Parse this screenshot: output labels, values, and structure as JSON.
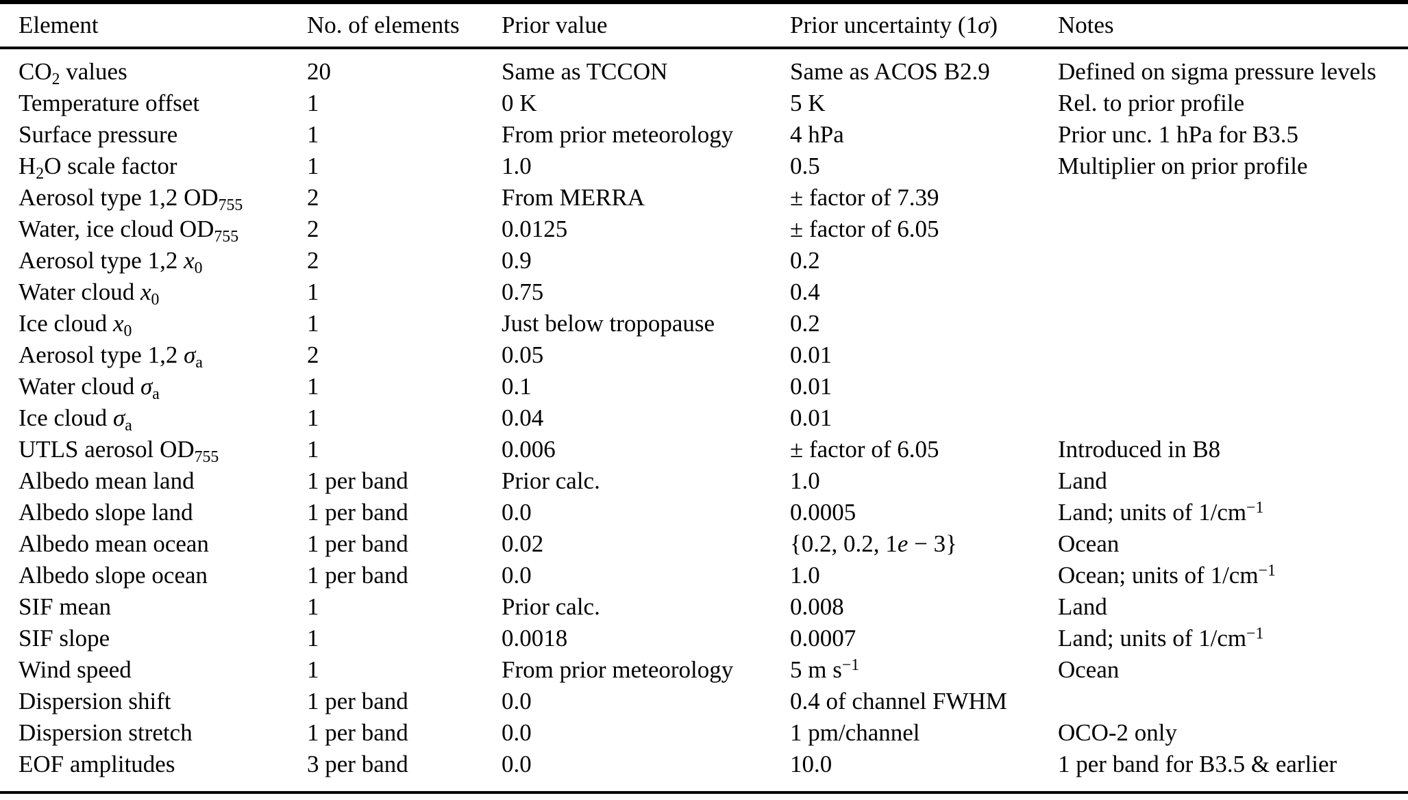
{
  "colors": {
    "text": "#000000",
    "background": "#ffffff",
    "rule": "#000000"
  },
  "table": {
    "column_keys": [
      "element",
      "num-elements",
      "prior-value",
      "prior-uncertainty",
      "notes"
    ],
    "columns": [
      {
        "label": "Element"
      },
      {
        "label": "No. of elements"
      },
      {
        "label": "Prior value"
      },
      {
        "label": "Prior uncertainty (1*σ*)"
      },
      {
        "label": "Notes"
      }
    ],
    "rows": [
      {
        "cells": [
          "CO_{2} values",
          "20",
          "Same as TCCON",
          "Same as ACOS B2.9",
          "Defined on sigma pressure levels"
        ]
      },
      {
        "cells": [
          "Temperature offset",
          "1",
          "0 K",
          "5 K",
          "Rel. to prior profile"
        ]
      },
      {
        "cells": [
          "Surface pressure",
          "1",
          "From prior meteorology",
          "4 hPa",
          "Prior unc. 1 hPa for B3.5"
        ]
      },
      {
        "cells": [
          "H_{2}O scale factor",
          "1",
          "1.0",
          "0.5",
          "Multiplier on prior profile"
        ]
      },
      {
        "cells": [
          "Aerosol type 1,2 OD_{755}",
          "2",
          "From MERRA",
          "± factor of 7.39",
          ""
        ]
      },
      {
        "cells": [
          "Water, ice cloud OD_{755}",
          "2",
          "0.0125",
          "± factor of 6.05",
          ""
        ]
      },
      {
        "cells": [
          "Aerosol type 1,2 *x*_{0}",
          "2",
          "0.9",
          "0.2",
          ""
        ]
      },
      {
        "cells": [
          "Water cloud *x*_{0}",
          "1",
          "0.75",
          "0.4",
          ""
        ]
      },
      {
        "cells": [
          "Ice cloud *x*_{0}",
          "1",
          "Just below tropopause",
          "0.2",
          ""
        ]
      },
      {
        "cells": [
          "Aerosol type 1,2 *σ*_{a}",
          "2",
          "0.05",
          "0.01",
          ""
        ]
      },
      {
        "cells": [
          "Water cloud *σ*_{a}",
          "1",
          "0.1",
          "0.01",
          ""
        ]
      },
      {
        "cells": [
          "Ice cloud *σ*_{a}",
          "1",
          "0.04",
          "0.01",
          ""
        ]
      },
      {
        "cells": [
          "UTLS aerosol OD_{755}",
          "1",
          "0.006",
          "± factor of 6.05",
          "Introduced in B8"
        ]
      },
      {
        "cells": [
          "Albedo mean land",
          "1 per band",
          "Prior calc.",
          "1.0",
          "Land"
        ]
      },
      {
        "cells": [
          "Albedo slope land",
          "1 per band",
          "0.0",
          "0.0005",
          "Land; units of 1/cm^{−1}"
        ]
      },
      {
        "cells": [
          "Albedo mean ocean",
          "1 per band",
          "0.02",
          "{0.2, 0.2, 1*e* − 3}",
          "Ocean"
        ]
      },
      {
        "cells": [
          "Albedo slope ocean",
          "1 per band",
          "0.0",
          "1.0",
          "Ocean; units of 1/cm^{−1}"
        ]
      },
      {
        "cells": [
          "SIF mean",
          "1",
          "Prior calc.",
          "0.008",
          "Land"
        ]
      },
      {
        "cells": [
          "SIF slope",
          "1",
          "0.0018",
          "0.0007",
          "Land; units of 1/cm^{−1}"
        ]
      },
      {
        "cells": [
          "Wind speed",
          "1",
          "From prior meteorology",
          "5 m s^{−1}",
          "Ocean"
        ]
      },
      {
        "cells": [
          "Dispersion shift",
          "1 per band",
          "0.0",
          "0.4 of channel FWHM",
          ""
        ]
      },
      {
        "cells": [
          "Dispersion stretch",
          "1 per band",
          "0.0",
          "1 pm/channel",
          "OCO-2 only"
        ]
      },
      {
        "cells": [
          "EOF amplitudes",
          "3 per band",
          "0.0",
          "10.0",
          "1 per band for B3.5 & earlier"
        ]
      }
    ]
  }
}
